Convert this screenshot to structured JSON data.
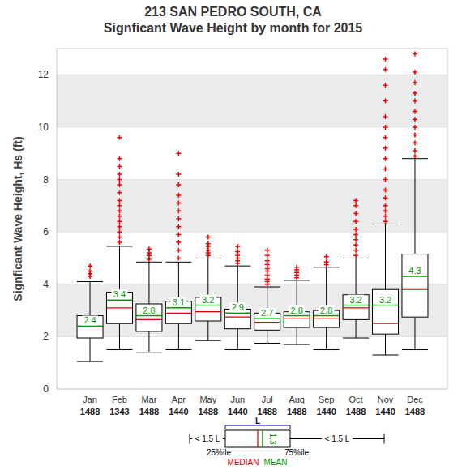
{
  "chart_data": {
    "type": "box",
    "title": "213   SAN PEDRO SOUTH, CA",
    "subtitle": "Signficant Wave Height by month for 2015",
    "y_label": "Signficant Wave Height, Hs (ft)",
    "categories": [
      "Jan",
      "Feb",
      "Mar",
      "Apr",
      "May",
      "Jun",
      "Jul",
      "Aug",
      "Sep",
      "Oct",
      "Nov",
      "Dec"
    ],
    "counts": [
      1488,
      1343,
      1488,
      1440,
      1488,
      1440,
      1488,
      1488,
      1440,
      1488,
      1440,
      1488
    ],
    "whisker_low": [
      1.05,
      1.5,
      1.4,
      1.5,
      1.85,
      1.5,
      1.75,
      1.7,
      1.5,
      1.95,
      1.3,
      1.5
    ],
    "q1": [
      1.95,
      2.5,
      2.2,
      2.5,
      2.6,
      2.3,
      2.25,
      2.35,
      2.35,
      2.65,
      2.1,
      2.75
    ],
    "median": [
      2.4,
      3.1,
      2.65,
      2.9,
      2.95,
      2.75,
      2.55,
      2.7,
      2.7,
      3.1,
      2.5,
      3.8
    ],
    "q3": [
      2.8,
      3.7,
      3.25,
      3.35,
      3.5,
      3.05,
      2.9,
      2.95,
      3.0,
      3.6,
      3.8,
      5.15
    ],
    "whisker_high": [
      4.1,
      5.45,
      4.85,
      4.85,
      5.0,
      4.7,
      3.9,
      4.15,
      4.65,
      5.0,
      6.3,
      8.8
    ],
    "mean": [
      2.4,
      3.4,
      2.8,
      3.1,
      3.2,
      2.9,
      2.7,
      2.8,
      2.8,
      3.2,
      3.2,
      4.3
    ],
    "outliers": [
      [
        4.3,
        4.4,
        4.5,
        4.7
      ],
      [
        5.6,
        5.8,
        6.0,
        6.2,
        6.4,
        6.6,
        6.8,
        7.0,
        7.2,
        7.5,
        7.8,
        8.0,
        8.2,
        8.5,
        8.8,
        9.6
      ],
      [
        4.95,
        5.1,
        5.2,
        5.35
      ],
      [
        5.0,
        5.3,
        5.6,
        5.9,
        6.2,
        6.5,
        6.8,
        7.1,
        7.4,
        7.8,
        8.2,
        9.0
      ],
      [
        5.1,
        5.2,
        5.3,
        5.45,
        5.55,
        5.8
      ],
      [
        4.8,
        4.9,
        5.0,
        5.1,
        5.25,
        5.45
      ],
      [
        4.0,
        4.1,
        4.2,
        4.35,
        4.5,
        4.6,
        4.75,
        4.9,
        5.1,
        5.3
      ],
      [
        4.25,
        4.35,
        4.45,
        4.55,
        4.65
      ],
      [
        4.75,
        4.85,
        5.05
      ],
      [
        5.1,
        5.3,
        5.5,
        5.7,
        5.9,
        6.1,
        6.4,
        6.7,
        7.0,
        7.2
      ],
      [
        6.4,
        6.6,
        6.8,
        7.0,
        7.3,
        7.6,
        8.0,
        8.4,
        8.8,
        9.2,
        9.6,
        10.0,
        10.4,
        11.0,
        11.6,
        12.2,
        12.6
      ],
      [
        8.9,
        9.1,
        9.4,
        9.7,
        10.0,
        10.3,
        10.6,
        11.0,
        11.3,
        11.7,
        12.1,
        12.8
      ]
    ],
    "ylim": [
      0,
      13
    ],
    "yticks": [
      0,
      2,
      4,
      6,
      8,
      10,
      12
    ],
    "grid": true,
    "data_labels": true,
    "key": {
      "whisker": "< 1.5 L",
      "iqr": "L",
      "q1": "25%ile",
      "q3": "75%ile",
      "median": "MEDIAN",
      "mean": "MEAN",
      "mean_example": "1.3"
    }
  }
}
